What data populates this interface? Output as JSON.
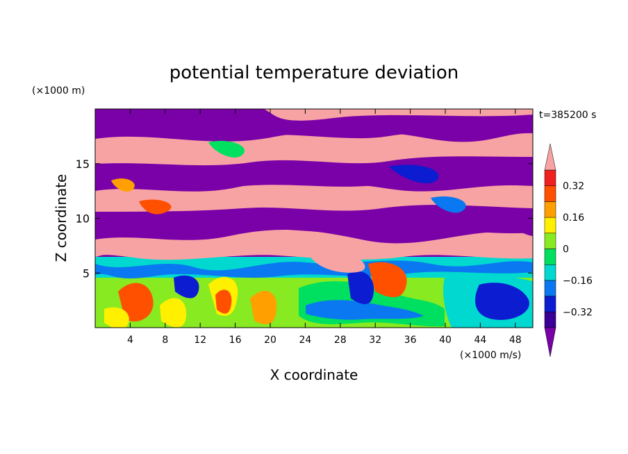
{
  "chart_data": {
    "type": "heatmap",
    "title": "potential temperature deviation",
    "xlabel": "X coordinate",
    "ylabel": "Z coordinate",
    "x_unit": "(×1000 m/s)",
    "y_unit": "(×1000 m)",
    "time_label": "t=385200 s",
    "xlim": [
      0,
      50
    ],
    "ylim": [
      0,
      20
    ],
    "x_ticks": [
      4,
      8,
      12,
      16,
      20,
      24,
      28,
      32,
      36,
      40,
      44,
      48
    ],
    "y_ticks": [
      5,
      10,
      15
    ],
    "colorbar": {
      "levels": [
        -0.4,
        -0.32,
        -0.24,
        -0.16,
        -0.08,
        0,
        0.08,
        0.16,
        0.24,
        0.32,
        0.4
      ],
      "tick_labels": [
        "0.32",
        "0.16",
        "0",
        "−0.16",
        "−0.32"
      ],
      "tick_values": [
        0.32,
        0.16,
        0,
        -0.16,
        -0.32
      ],
      "colors": [
        "#7a00a8",
        "#3a0096",
        "#0c1cd0",
        "#0a78f0",
        "#00d8d0",
        "#00e060",
        "#88ea20",
        "#fff000",
        "#ffa000",
        "#ff5000",
        "#f02020",
        "#f7a3a3"
      ],
      "extend": "both"
    }
  }
}
